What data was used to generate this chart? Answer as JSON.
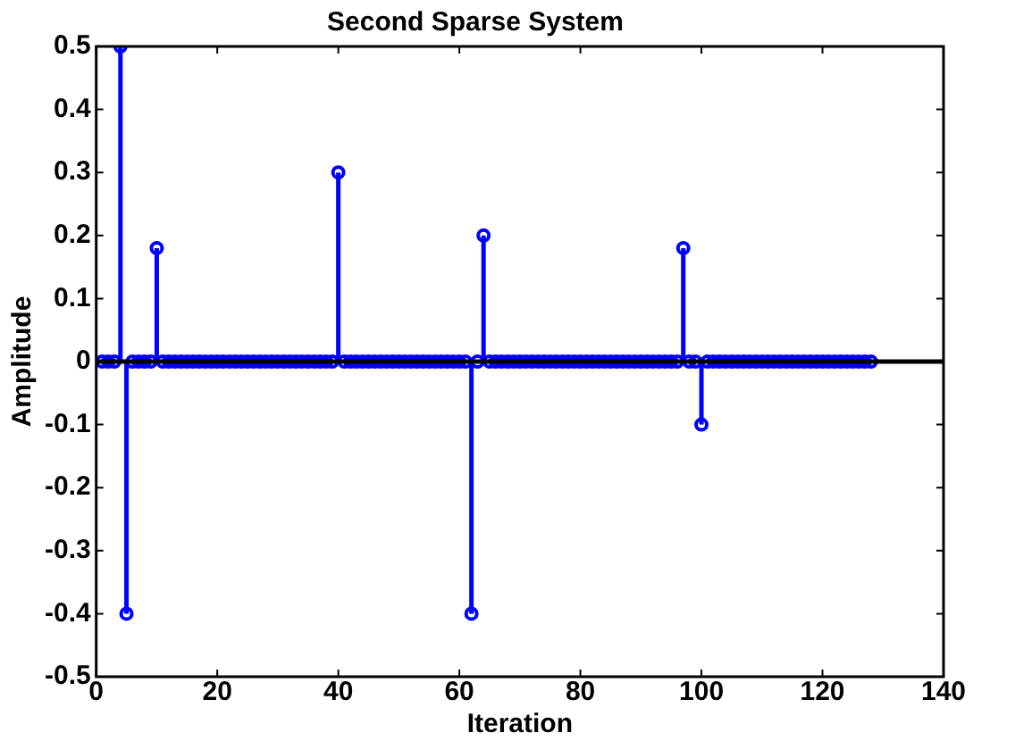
{
  "chart_data": {
    "type": "lollipop",
    "title": "Second Sparse System",
    "xlabel": "Iteration",
    "ylabel": "Amplitude",
    "x": [
      1,
      2,
      3,
      4,
      5,
      6,
      7,
      8,
      9,
      10,
      11,
      12,
      13,
      14,
      15,
      16,
      17,
      18,
      19,
      20,
      21,
      22,
      23,
      24,
      25,
      26,
      27,
      28,
      29,
      30,
      31,
      32,
      33,
      34,
      35,
      36,
      37,
      38,
      39,
      40,
      41,
      42,
      43,
      44,
      45,
      46,
      47,
      48,
      49,
      50,
      51,
      52,
      53,
      54,
      55,
      56,
      57,
      58,
      59,
      60,
      61,
      62,
      63,
      64,
      65,
      66,
      67,
      68,
      69,
      70,
      71,
      72,
      73,
      74,
      75,
      76,
      77,
      78,
      79,
      80,
      81,
      82,
      83,
      84,
      85,
      86,
      87,
      88,
      89,
      90,
      91,
      92,
      93,
      94,
      95,
      96,
      97,
      98,
      99,
      100,
      101,
      102,
      103,
      104,
      105,
      106,
      107,
      108,
      109,
      110,
      111,
      112,
      113,
      114,
      115,
      116,
      117,
      118,
      119,
      120,
      121,
      122,
      123,
      124,
      125,
      126,
      127,
      128
    ],
    "values": [
      0,
      0,
      0,
      0.5,
      -0.4,
      0,
      0,
      0,
      0,
      0.18,
      0,
      0,
      0,
      0,
      0,
      0,
      0,
      0,
      0,
      0,
      0,
      0,
      0,
      0,
      0,
      0,
      0,
      0,
      0,
      0,
      0,
      0,
      0,
      0,
      0,
      0,
      0,
      0,
      0,
      0.3,
      0,
      0,
      0,
      0,
      0,
      0,
      0,
      0,
      0,
      0,
      0,
      0,
      0,
      0,
      0,
      0,
      0,
      0,
      0,
      0,
      0,
      -0.4,
      0,
      0.2,
      0,
      0,
      0,
      0,
      0,
      0,
      0,
      0,
      0,
      0,
      0,
      0,
      0,
      0,
      0,
      0,
      0,
      0,
      0,
      0,
      0,
      0,
      0,
      0,
      0,
      0,
      0,
      0,
      0,
      0,
      0,
      0,
      0.18,
      0,
      0,
      -0.1,
      0,
      0,
      0,
      0,
      0,
      0,
      0,
      0,
      0,
      0,
      0,
      0,
      0,
      0,
      0,
      0,
      0,
      0,
      0,
      0,
      0,
      0,
      0,
      0,
      0,
      0,
      0,
      0
    ],
    "color": "#0000ff",
    "marker": "circle",
    "grid": false,
    "legend": false,
    "xlim": [
      0,
      140
    ],
    "xticks": [
      0,
      20,
      40,
      60,
      80,
      100,
      120,
      140
    ],
    "ylim": [
      -0.5,
      0.5
    ],
    "yticks": [
      -0.5,
      -0.4,
      -0.3,
      -0.2,
      -0.1,
      0,
      0.1,
      0.2,
      0.3,
      0.4,
      0.5
    ],
    "ref_lines": [
      {
        "axis": "y",
        "value": 0,
        "color": "#000000"
      }
    ]
  }
}
